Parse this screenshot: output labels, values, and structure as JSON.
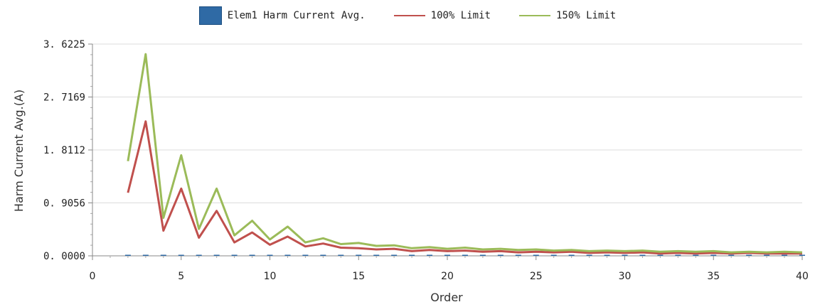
{
  "chart_data": {
    "type": "line",
    "xlabel": "Order",
    "ylabel": "Harm Current Avg.(A)",
    "xlim": [
      0,
      40
    ],
    "ylim": [
      0,
      3.6225
    ],
    "x_ticks": [
      0,
      5,
      10,
      15,
      20,
      25,
      30,
      35,
      40
    ],
    "x_tick_labels": [
      "0",
      "5",
      "10",
      "15",
      "20",
      "25",
      "30",
      "35",
      "40"
    ],
    "y_ticks": [
      0,
      0.9056,
      1.8112,
      2.7169,
      3.6225
    ],
    "y_tick_labels": [
      "0. 0000",
      "0. 9056",
      "1. 8112",
      "2. 7169",
      "3. 6225"
    ],
    "grid": true,
    "legend_position": "top-center",
    "x": [
      2,
      3,
      4,
      5,
      6,
      7,
      8,
      9,
      10,
      11,
      12,
      13,
      14,
      15,
      16,
      17,
      18,
      19,
      20,
      21,
      22,
      23,
      24,
      25,
      26,
      27,
      28,
      29,
      30,
      31,
      32,
      33,
      34,
      35,
      36,
      37,
      38,
      39,
      40
    ],
    "series": [
      {
        "name": "Elem1 Harm Current Avg.",
        "style": "bar",
        "color": "#2f6aa5",
        "values": [
          0,
          0,
          0,
          0,
          0,
          0,
          0,
          0,
          0,
          0,
          0,
          0,
          0,
          0,
          0,
          0,
          0,
          0,
          0,
          0,
          0,
          0,
          0,
          0,
          0,
          0,
          0,
          0,
          0,
          0,
          0,
          0,
          0,
          0,
          0,
          0,
          0,
          0,
          0
        ]
      },
      {
        "name": "100% Limit",
        "style": "line",
        "color": "#c0504d",
        "values": [
          1.08,
          2.3,
          0.43,
          1.15,
          0.31,
          0.77,
          0.23,
          0.4,
          0.19,
          0.33,
          0.16,
          0.21,
          0.14,
          0.13,
          0.11,
          0.12,
          0.08,
          0.1,
          0.08,
          0.09,
          0.07,
          0.08,
          0.06,
          0.07,
          0.06,
          0.07,
          0.05,
          0.06,
          0.05,
          0.06,
          0.04,
          0.05,
          0.04,
          0.05,
          0.04,
          0.05,
          0.04,
          0.04,
          0.04
        ]
      },
      {
        "name": "150% Limit",
        "style": "line",
        "color": "#9bbb59",
        "values": [
          1.62,
          3.45,
          0.65,
          1.72,
          0.46,
          1.15,
          0.35,
          0.6,
          0.28,
          0.5,
          0.23,
          0.3,
          0.2,
          0.22,
          0.17,
          0.18,
          0.13,
          0.15,
          0.12,
          0.14,
          0.11,
          0.12,
          0.1,
          0.11,
          0.09,
          0.1,
          0.08,
          0.09,
          0.08,
          0.09,
          0.07,
          0.08,
          0.07,
          0.08,
          0.06,
          0.07,
          0.06,
          0.07,
          0.06
        ]
      }
    ]
  }
}
